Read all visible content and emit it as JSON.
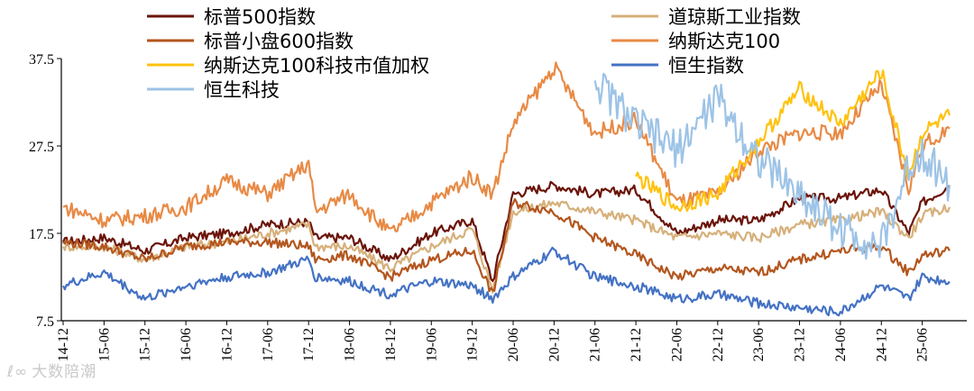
{
  "watermark": {
    "logo": "ℓ∞",
    "text": "大数陪潮"
  },
  "chart_data": {
    "type": "line",
    "title": "",
    "xlabel": "",
    "ylabel": "",
    "ylim": [
      7.5,
      37.5
    ],
    "yticks": [
      "7.5",
      "17.5",
      "27.5",
      "37.5"
    ],
    "x_ticks": [
      "14-12",
      "15-06",
      "15-12",
      "16-06",
      "16-12",
      "17-06",
      "17-12",
      "18-06",
      "18-12",
      "19-06",
      "19-12",
      "20-06",
      "20-12",
      "21-06",
      "21-12",
      "22-06",
      "22-12",
      "23-06",
      "23-12",
      "24-06",
      "24-12",
      "25-06"
    ],
    "legend_position": "top",
    "x_dates": [
      "2014-12",
      "2015-06",
      "2015-12",
      "2016-06",
      "2016-12",
      "2017-06",
      "2017-12",
      "2018-01",
      "2018-06",
      "2018-12",
      "2019-06",
      "2019-12",
      "2020-03",
      "2020-06",
      "2020-12",
      "2021-06",
      "2021-12",
      "2022-06",
      "2022-12",
      "2023-06",
      "2023-12",
      "2024-06",
      "2024-12",
      "2025-04",
      "2025-06",
      "2025-10"
    ],
    "series": [
      {
        "name": "标普500指数",
        "color": "#6b1409",
        "values": [
          16.5,
          17.0,
          15.5,
          17.0,
          17.5,
          18.5,
          18.8,
          17.0,
          17.0,
          14.5,
          17.5,
          19.0,
          12.0,
          22.0,
          23.0,
          22.0,
          22.5,
          17.5,
          19.0,
          19.0,
          21.5,
          21.5,
          22.5,
          17.5,
          21.0,
          23.0
        ]
      },
      {
        "name": "道琼斯工业指数",
        "color": "#d6b07a",
        "values": [
          16.0,
          16.0,
          14.5,
          16.0,
          16.5,
          17.5,
          18.5,
          16.0,
          16.0,
          13.5,
          16.0,
          18.0,
          11.0,
          20.0,
          21.0,
          20.0,
          19.0,
          17.0,
          17.5,
          17.0,
          18.5,
          19.0,
          20.0,
          17.0,
          19.5,
          20.5
        ]
      },
      {
        "name": "标普小盘600指数",
        "color": "#b3561e",
        "values": [
          16.5,
          16.0,
          14.5,
          16.0,
          16.5,
          16.5,
          16.0,
          14.5,
          15.0,
          12.5,
          14.5,
          15.5,
          10.5,
          21.0,
          20.0,
          17.0,
          15.0,
          12.5,
          13.5,
          13.0,
          14.5,
          15.5,
          16.0,
          13.0,
          15.0,
          15.5
        ]
      },
      {
        "name": "纳斯达克100",
        "color": "#e88a45",
        "values": [
          20.5,
          19.0,
          19.5,
          20.5,
          23.5,
          22.0,
          25.5,
          20.0,
          22.0,
          17.5,
          21.0,
          24.0,
          22.0,
          30.0,
          36.5,
          29.0,
          30.5,
          21.0,
          22.0,
          27.0,
          29.0,
          29.0,
          34.5,
          22.5,
          27.5,
          29.5
        ]
      },
      {
        "name": "纳斯达克100科技市值加权",
        "color": "#ffc20e",
        "values": [
          null,
          null,
          null,
          null,
          null,
          null,
          null,
          null,
          null,
          null,
          null,
          null,
          null,
          null,
          null,
          null,
          24.0,
          20.5,
          22.0,
          28.0,
          34.0,
          30.0,
          36.0,
          24.0,
          29.0,
          31.0
        ]
      },
      {
        "name": "恒生指数",
        "color": "#4472c4",
        "values": [
          11.5,
          13.0,
          10.0,
          11.5,
          12.5,
          13.0,
          14.5,
          12.5,
          12.0,
          10.5,
          12.0,
          11.5,
          10.0,
          12.5,
          15.5,
          12.5,
          11.5,
          10.0,
          10.5,
          9.5,
          9.0,
          8.5,
          11.5,
          10.0,
          12.5,
          12.0
        ]
      },
      {
        "name": "恒生科技",
        "color": "#9dc3e6",
        "values": [
          null,
          null,
          null,
          null,
          null,
          null,
          null,
          null,
          null,
          null,
          null,
          null,
          null,
          null,
          null,
          35.0,
          30.0,
          27.0,
          33.0,
          26.0,
          22.0,
          18.0,
          16.0,
          25.0,
          27.0,
          23.0
        ]
      }
    ]
  }
}
